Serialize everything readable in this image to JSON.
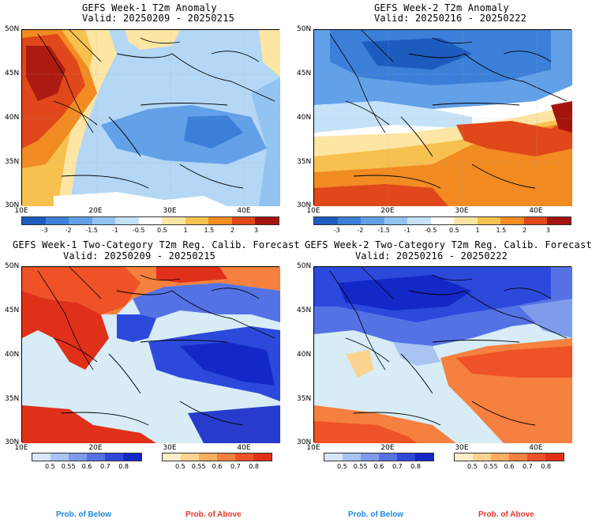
{
  "axes": {
    "lat_labels": [
      "50N",
      "45N",
      "40N",
      "35N",
      "30N"
    ],
    "lon_labels": [
      "10E",
      "20E",
      "30E",
      "40E"
    ]
  },
  "anomaly_colorbar": {
    "ticks": [
      "-3",
      "-2",
      "-1.5",
      "-1",
      "-0.5",
      "0.5",
      "1",
      "1.5",
      "2",
      "3"
    ],
    "colors": [
      "#1d5bbf",
      "#3b7fd9",
      "#62a0e8",
      "#93c3f1",
      "#c5e2f8",
      "#ffffff",
      "#fde6a4",
      "#f7c14f",
      "#f18b22",
      "#e0471a",
      "#a3140f"
    ]
  },
  "prob_colorbars": {
    "below": {
      "ticks": [
        "0.5",
        "0.55",
        "0.6",
        "0.7",
        "0.8"
      ],
      "colors": [
        "#d7e6fa",
        "#a9c3f2",
        "#7f9cec",
        "#5572e5",
        "#2d49dc",
        "#1428c8"
      ]
    },
    "above": {
      "ticks": [
        "0.5",
        "0.55",
        "0.6",
        "0.7",
        "0.8"
      ],
      "colors": [
        "#fdeec9",
        "#fcd38e",
        "#f9ad61",
        "#f5803f",
        "#ee5226",
        "#e0301a"
      ]
    },
    "below_label": "Prob. of Below",
    "above_label": "Prob. of Above"
  },
  "panels": [
    {
      "title": "GEFS Week-1 T2m Anomaly",
      "valid": "Valid: 20250209 - 20250215"
    },
    {
      "title": "GEFS Week-2 T2m Anomaly",
      "valid": "Valid: 20250216 - 20250222"
    },
    {
      "title": "GEFS Week-1 Two-Category T2m Reg. Calib. Forecast",
      "valid": "Valid: 20250209 - 20250215"
    },
    {
      "title": "GEFS Week-2 Two-Category T2m Reg. Calib. Forecast",
      "valid": "Valid: 20250216 - 20250222"
    }
  ]
}
